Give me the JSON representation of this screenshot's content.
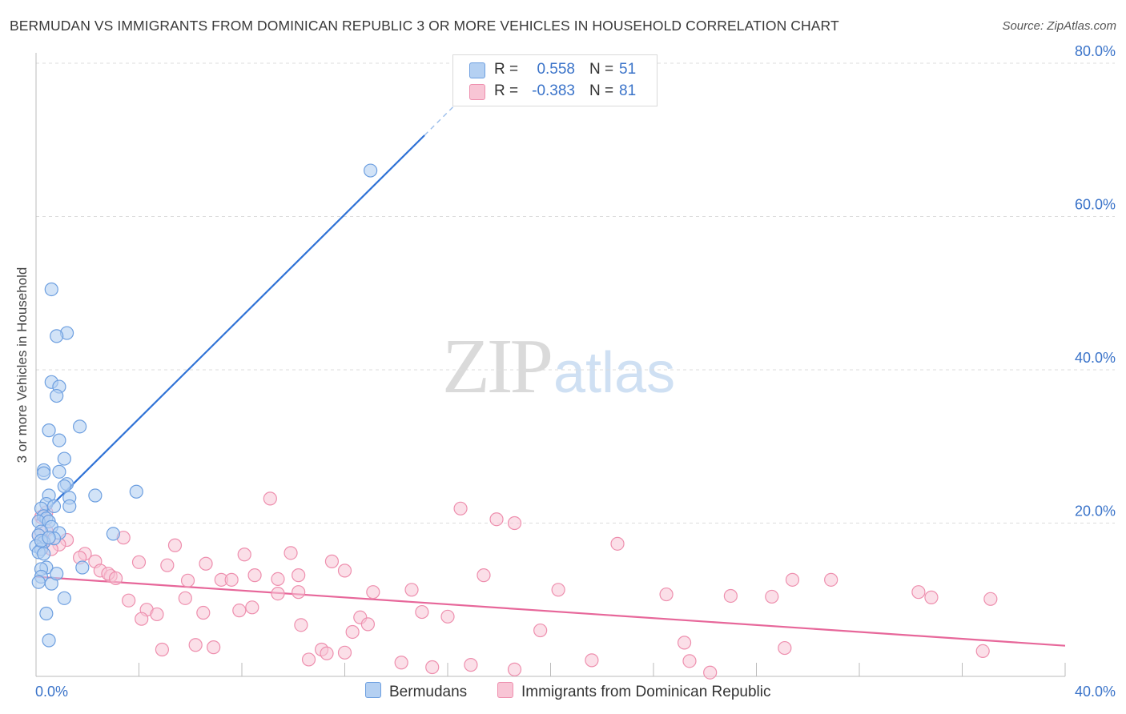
{
  "title": "BERMUDAN VS IMMIGRANTS FROM DOMINICAN REPUBLIC 3 OR MORE VEHICLES IN HOUSEHOLD CORRELATION CHART",
  "source": "Source: ZipAtlas.com",
  "watermark": {
    "zip": "ZIP",
    "atlas": "atlas"
  },
  "legend": {
    "rows": [
      {
        "r_label": "R =",
        "r_value": "0.558",
        "n_label": "N =",
        "n_value": "51"
      },
      {
        "r_label": "R =",
        "r_value": "-0.383",
        "n_label": "N =",
        "n_value": "81"
      }
    ]
  },
  "bottom_legend": {
    "bermudans": "Bermudans",
    "dominican": "Immigrants from Dominican Republic"
  },
  "colors": {
    "blue_fill": "#b4d0f2",
    "blue_stroke": "#6d9fe0",
    "blue_line": "#2f72d6",
    "pink_fill": "#f8c5d5",
    "pink_stroke": "#ee8fae",
    "pink_line": "#e7679a",
    "axis_text": "#3a73c9"
  },
  "chart_data": {
    "type": "scatter",
    "title": "BERMUDAN VS IMMIGRANTS FROM DOMINICAN REPUBLIC 3 OR MORE VEHICLES IN HOUSEHOLD CORRELATION CHART",
    "xlabel": "",
    "ylabel": "3 or more Vehicles in Household",
    "xlim": [
      0,
      40
    ],
    "ylim": [
      0,
      80
    ],
    "x_tick_labels": [
      "0.0%",
      "40.0%"
    ],
    "y_ticks": [
      20,
      40,
      60,
      80
    ],
    "y_tick_labels": [
      "20.0%",
      "40.0%",
      "60.0%",
      "80.0%"
    ],
    "grid": true,
    "legend_position": "top-center",
    "series": [
      {
        "name": "Bermudans",
        "r": 0.558,
        "n": 51,
        "trend": {
          "x0": 0,
          "y0": 20.3,
          "x1": 15.1,
          "y1": 70.6,
          "dash_to_x": 17.2,
          "dash_to_y": 77.6
        },
        "points": [
          [
            0.6,
            50.5
          ],
          [
            1.2,
            44.8
          ],
          [
            0.8,
            44.4
          ],
          [
            0.6,
            38.4
          ],
          [
            0.9,
            37.8
          ],
          [
            0.8,
            36.6
          ],
          [
            1.7,
            32.6
          ],
          [
            0.5,
            32.1
          ],
          [
            0.9,
            30.8
          ],
          [
            1.1,
            28.4
          ],
          [
            0.3,
            26.9
          ],
          [
            0.9,
            26.7
          ],
          [
            0.3,
            26.5
          ],
          [
            1.2,
            25.1
          ],
          [
            1.1,
            24.8
          ],
          [
            2.3,
            23.6
          ],
          [
            0.5,
            23.6
          ],
          [
            1.3,
            23.3
          ],
          [
            3.9,
            24.1
          ],
          [
            0.4,
            22.5
          ],
          [
            0.7,
            22.2
          ],
          [
            1.3,
            22.2
          ],
          [
            0.2,
            21.9
          ],
          [
            0.3,
            20.9
          ],
          [
            0.4,
            20.6
          ],
          [
            0.1,
            20.2
          ],
          [
            0.5,
            20.2
          ],
          [
            0.6,
            19.5
          ],
          [
            0.2,
            18.9
          ],
          [
            0.9,
            18.7
          ],
          [
            0.1,
            18.4
          ],
          [
            0.7,
            18.0
          ],
          [
            3.0,
            18.6
          ],
          [
            0.3,
            17.5
          ],
          [
            0.0,
            17.0
          ],
          [
            0.2,
            16.6
          ],
          [
            0.1,
            16.2
          ],
          [
            0.3,
            16.0
          ],
          [
            1.8,
            14.2
          ],
          [
            0.4,
            14.2
          ],
          [
            0.2,
            14.0
          ],
          [
            0.2,
            13.0
          ],
          [
            0.1,
            12.3
          ],
          [
            0.6,
            12.1
          ],
          [
            1.1,
            10.2
          ],
          [
            0.4,
            8.2
          ],
          [
            0.5,
            4.7
          ],
          [
            13.0,
            66.0
          ],
          [
            0.2,
            17.7
          ],
          [
            0.5,
            18.1
          ],
          [
            0.8,
            13.4
          ]
        ]
      },
      {
        "name": "Immigrants from Dominican Republic",
        "r": -0.383,
        "n": 81,
        "trend": {
          "x0": 0,
          "y0": 13.0,
          "x1": 40,
          "y1": 4.0
        },
        "points": [
          [
            9.1,
            23.2
          ],
          [
            16.5,
            21.9
          ],
          [
            17.9,
            20.5
          ],
          [
            18.6,
            20.0
          ],
          [
            0.4,
            21.4
          ],
          [
            0.2,
            20.8
          ],
          [
            0.4,
            19.0
          ],
          [
            0.1,
            18.4
          ],
          [
            0.3,
            17.7
          ],
          [
            1.2,
            17.8
          ],
          [
            0.9,
            17.2
          ],
          [
            3.4,
            18.1
          ],
          [
            5.4,
            17.1
          ],
          [
            22.6,
            17.3
          ],
          [
            0.6,
            16.6
          ],
          [
            1.9,
            16.0
          ],
          [
            1.7,
            15.5
          ],
          [
            8.1,
            15.9
          ],
          [
            9.9,
            16.1
          ],
          [
            11.5,
            15.0
          ],
          [
            4.0,
            14.9
          ],
          [
            2.3,
            15.0
          ],
          [
            5.1,
            14.5
          ],
          [
            6.6,
            14.7
          ],
          [
            12.0,
            13.8
          ],
          [
            2.5,
            13.8
          ],
          [
            2.9,
            13.1
          ],
          [
            2.8,
            13.4
          ],
          [
            3.1,
            12.8
          ],
          [
            8.5,
            13.2
          ],
          [
            10.2,
            13.2
          ],
          [
            17.4,
            13.2
          ],
          [
            7.2,
            12.6
          ],
          [
            7.6,
            12.6
          ],
          [
            9.4,
            12.7
          ],
          [
            5.9,
            12.5
          ],
          [
            29.4,
            12.6
          ],
          [
            30.9,
            12.6
          ],
          [
            20.3,
            11.3
          ],
          [
            14.6,
            11.3
          ],
          [
            13.1,
            11.0
          ],
          [
            10.2,
            11.0
          ],
          [
            9.4,
            10.8
          ],
          [
            24.5,
            10.7
          ],
          [
            27.0,
            10.5
          ],
          [
            28.6,
            10.4
          ],
          [
            34.3,
            11.0
          ],
          [
            34.8,
            10.3
          ],
          [
            37.1,
            10.1
          ],
          [
            3.6,
            9.9
          ],
          [
            5.8,
            10.2
          ],
          [
            8.4,
            9.0
          ],
          [
            15.0,
            8.4
          ],
          [
            16.0,
            7.8
          ],
          [
            4.3,
            8.7
          ],
          [
            6.5,
            8.3
          ],
          [
            7.9,
            8.6
          ],
          [
            4.7,
            8.1
          ],
          [
            4.1,
            7.5
          ],
          [
            12.6,
            7.7
          ],
          [
            12.9,
            6.8
          ],
          [
            10.3,
            6.7
          ],
          [
            19.6,
            6.0
          ],
          [
            12.3,
            5.8
          ],
          [
            25.2,
            4.4
          ],
          [
            6.2,
            4.1
          ],
          [
            6.9,
            3.8
          ],
          [
            29.1,
            3.7
          ],
          [
            36.8,
            3.3
          ],
          [
            4.9,
            3.5
          ],
          [
            11.1,
            3.5
          ],
          [
            11.3,
            3.0
          ],
          [
            12.0,
            3.1
          ],
          [
            25.4,
            2.0
          ],
          [
            21.6,
            2.1
          ],
          [
            10.6,
            2.2
          ],
          [
            14.2,
            1.8
          ],
          [
            16.9,
            1.5
          ],
          [
            18.6,
            0.9
          ],
          [
            15.4,
            1.2
          ],
          [
            26.2,
            0.5
          ]
        ]
      }
    ]
  }
}
